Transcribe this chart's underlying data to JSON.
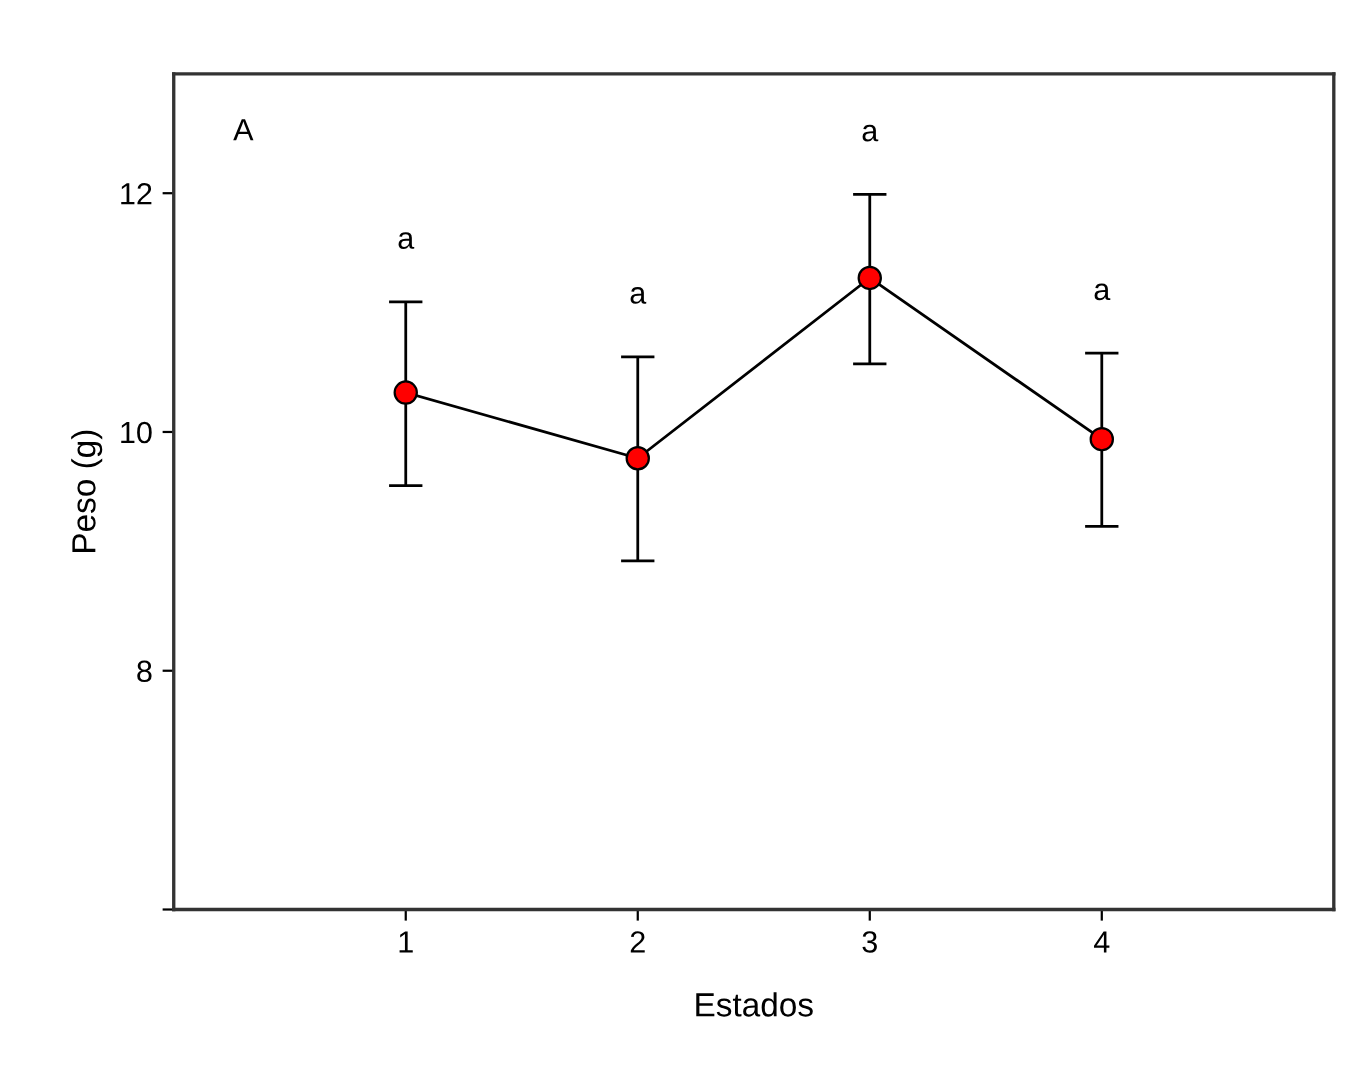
{
  "chart_data": {
    "type": "line",
    "xlabel": "Estados",
    "ylabel": "Peso (g)",
    "categories": [
      "1",
      "2",
      "3",
      "4"
    ],
    "series": [
      {
        "color": "#ff0000",
        "values": [
          10.33,
          9.78,
          11.29,
          9.94
        ],
        "errors": [
          [
            9.55,
            11.09
          ],
          [
            8.92,
            10.63
          ],
          [
            10.57,
            11.99
          ],
          [
            9.21,
            10.66
          ]
        ]
      }
    ],
    "ylim": [
      6,
      13
    ],
    "yticks": [
      {
        "value": 6,
        "label": null
      },
      8,
      10,
      12
    ],
    "marker": "circle",
    "line_style": "solid",
    "grid": false,
    "legend": false,
    "annotations": [
      "A",
      "a",
      "a",
      "a",
      "a"
    ]
  }
}
